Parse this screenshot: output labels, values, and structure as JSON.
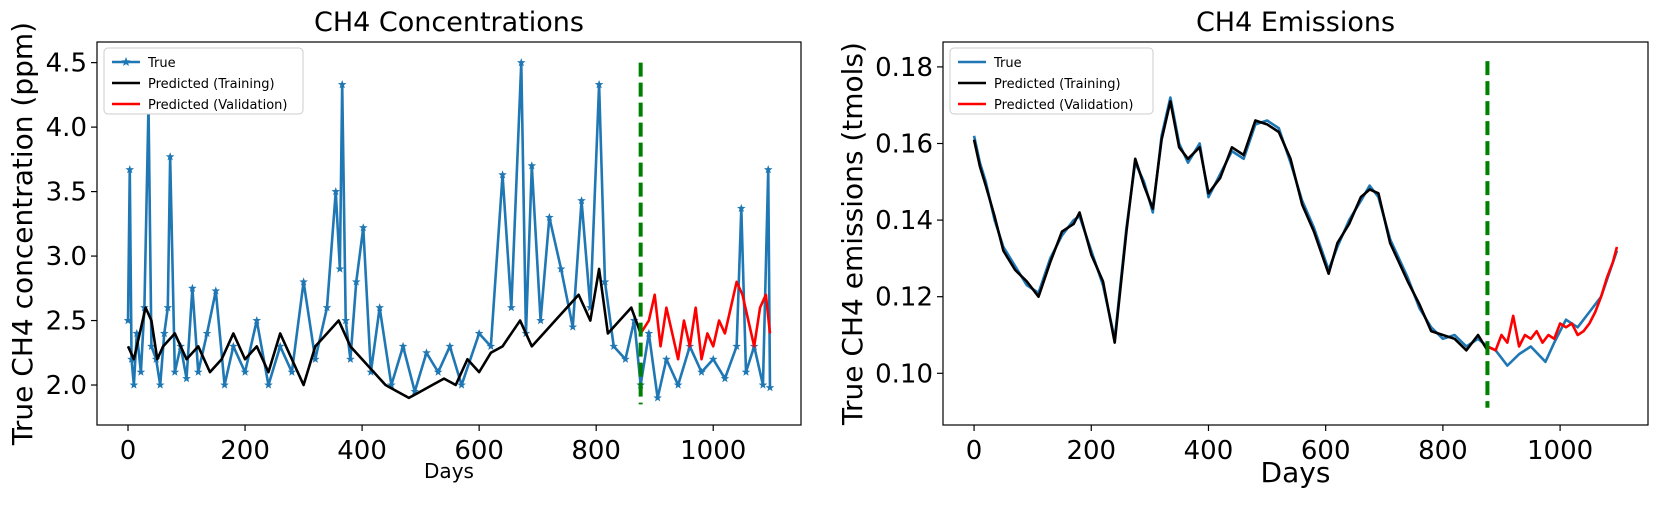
{
  "chart_data": [
    {
      "type": "line",
      "title": "CH4 Concentrations",
      "xlabel": "Days",
      "ylabel": "True CH4 concentration (ppm)",
      "xlim": [
        -53,
        1150
      ],
      "ylim": [
        1.69,
        4.66
      ],
      "xticks": [
        0,
        200,
        400,
        600,
        800,
        1000
      ],
      "yticks": [
        2.0,
        2.5,
        3.0,
        3.5,
        4.0,
        4.5
      ],
      "ytick_labels": [
        "2.0",
        "2.5",
        "3.0",
        "3.5",
        "4.0",
        "4.5"
      ],
      "grid": false,
      "legend_position": "top-left",
      "split_line": {
        "x": 876,
        "y_range": [
          1.85,
          4.5
        ],
        "color": "#008000",
        "style": "dashed"
      },
      "series": [
        {
          "name": "True",
          "color": "#1f77b4",
          "marker": "star",
          "x": [
            0,
            3,
            6,
            10,
            15,
            22,
            28,
            35,
            40,
            48,
            55,
            62,
            68,
            72,
            80,
            90,
            100,
            110,
            120,
            135,
            150,
            165,
            180,
            200,
            220,
            240,
            260,
            280,
            300,
            320,
            340,
            355,
            362,
            366,
            372,
            380,
            390,
            402,
            415,
            430,
            450,
            470,
            490,
            510,
            530,
            550,
            570,
            600,
            620,
            640,
            655,
            672,
            680,
            690,
            705,
            720,
            740,
            760,
            775,
            790,
            805,
            815,
            830,
            850,
            865,
            876,
            890,
            905,
            920,
            940,
            960,
            980,
            1000,
            1020,
            1040,
            1048,
            1056,
            1070,
            1085,
            1094,
            1097
          ],
          "values": [
            2.5,
            3.67,
            2.2,
            2.0,
            2.4,
            2.1,
            2.6,
            4.17,
            2.3,
            2.2,
            2.0,
            2.4,
            2.6,
            3.77,
            2.1,
            2.3,
            2.05,
            2.75,
            2.1,
            2.4,
            2.73,
            2.0,
            2.3,
            2.1,
            2.5,
            2.0,
            2.3,
            2.1,
            2.8,
            2.2,
            2.6,
            3.5,
            2.9,
            4.33,
            2.5,
            2.2,
            2.8,
            3.22,
            2.1,
            2.6,
            2.0,
            2.3,
            1.95,
            2.25,
            2.1,
            2.3,
            2.0,
            2.4,
            2.3,
            3.63,
            2.6,
            4.5,
            2.4,
            3.7,
            2.5,
            3.3,
            2.9,
            2.45,
            3.43,
            2.6,
            4.33,
            2.8,
            2.3,
            2.2,
            2.5,
            2.0,
            2.4,
            1.9,
            2.2,
            2.0,
            2.3,
            2.1,
            2.2,
            2.05,
            2.3,
            3.37,
            2.1,
            2.3,
            2.0,
            3.67,
            1.98
          ]
        },
        {
          "name": "Predicted (Training)",
          "color": "#000000",
          "x": [
            0,
            10,
            20,
            30,
            40,
            50,
            60,
            80,
            100,
            120,
            140,
            160,
            180,
            200,
            220,
            240,
            260,
            280,
            300,
            320,
            340,
            360,
            380,
            400,
            420,
            440,
            460,
            480,
            500,
            520,
            540,
            560,
            580,
            600,
            620,
            640,
            655,
            670,
            690,
            710,
            730,
            750,
            770,
            790,
            805,
            820,
            840,
            860,
            876
          ],
          "values": [
            2.3,
            2.2,
            2.4,
            2.6,
            2.5,
            2.2,
            2.3,
            2.4,
            2.2,
            2.3,
            2.1,
            2.2,
            2.4,
            2.2,
            2.3,
            2.1,
            2.4,
            2.2,
            2.0,
            2.3,
            2.4,
            2.5,
            2.3,
            2.2,
            2.1,
            2.0,
            1.95,
            1.9,
            1.95,
            2.0,
            2.05,
            2.0,
            2.2,
            2.1,
            2.25,
            2.3,
            2.4,
            2.5,
            2.3,
            2.4,
            2.5,
            2.6,
            2.7,
            2.5,
            2.9,
            2.4,
            2.5,
            2.6,
            2.4
          ]
        },
        {
          "name": "Predicted (Validation)",
          "color": "#ff0000",
          "x": [
            876,
            890,
            900,
            910,
            920,
            930,
            940,
            950,
            960,
            970,
            980,
            990,
            1000,
            1010,
            1020,
            1030,
            1040,
            1050,
            1060,
            1070,
            1080,
            1090,
            1097
          ],
          "values": [
            2.4,
            2.5,
            2.7,
            2.3,
            2.6,
            2.4,
            2.2,
            2.5,
            2.3,
            2.6,
            2.2,
            2.4,
            2.3,
            2.5,
            2.4,
            2.6,
            2.8,
            2.7,
            2.5,
            2.3,
            2.6,
            2.7,
            2.4
          ]
        }
      ]
    },
    {
      "type": "line",
      "title": "CH4 Emissions",
      "xlabel": "Days",
      "ylabel": "True CH4 emissions (tmols)",
      "xlim": [
        -53,
        1150
      ],
      "ylim": [
        0.0865,
        0.1865
      ],
      "xticks": [
        0,
        200,
        400,
        600,
        800,
        1000
      ],
      "yticks": [
        0.1,
        0.12,
        0.14,
        0.16,
        0.18
      ],
      "ytick_labels": [
        "0.10",
        "0.12",
        "0.14",
        "0.16",
        "0.18"
      ],
      "grid": false,
      "legend_position": "top-left",
      "split_line": {
        "x": 876,
        "y_range": [
          0.091,
          0.1815
        ],
        "color": "#008000",
        "style": "dashed"
      },
      "series": [
        {
          "name": "True",
          "color": "#1f77b4",
          "x": [
            0,
            10,
            20,
            35,
            50,
            70,
            90,
            110,
            130,
            150,
            170,
            180,
            200,
            220,
            240,
            260,
            275,
            290,
            305,
            320,
            335,
            350,
            365,
            385,
            400,
            420,
            440,
            460,
            480,
            500,
            520,
            540,
            560,
            580,
            605,
            620,
            640,
            660,
            675,
            690,
            710,
            740,
            760,
            780,
            800,
            820,
            840,
            860,
            876,
            890,
            910,
            930,
            950,
            975,
            990,
            1010,
            1030,
            1050,
            1070,
            1097
          ],
          "values": [
            0.162,
            0.155,
            0.15,
            0.14,
            0.133,
            0.128,
            0.123,
            0.121,
            0.13,
            0.136,
            0.14,
            0.141,
            0.132,
            0.123,
            0.109,
            0.138,
            0.155,
            0.15,
            0.142,
            0.162,
            0.172,
            0.16,
            0.155,
            0.16,
            0.146,
            0.152,
            0.158,
            0.156,
            0.165,
            0.166,
            0.164,
            0.155,
            0.145,
            0.138,
            0.127,
            0.133,
            0.14,
            0.145,
            0.149,
            0.146,
            0.135,
            0.125,
            0.117,
            0.112,
            0.109,
            0.11,
            0.107,
            0.109,
            0.107,
            0.106,
            0.102,
            0.105,
            0.107,
            0.103,
            0.108,
            0.114,
            0.112,
            0.116,
            0.12,
            0.132
          ]
        },
        {
          "name": "Predicted (Training)",
          "color": "#000000",
          "x": [
            0,
            10,
            20,
            35,
            50,
            70,
            90,
            110,
            130,
            150,
            170,
            180,
            200,
            220,
            240,
            260,
            275,
            290,
            305,
            320,
            335,
            350,
            365,
            385,
            400,
            420,
            440,
            460,
            480,
            500,
            520,
            540,
            560,
            580,
            605,
            620,
            640,
            660,
            675,
            690,
            710,
            740,
            760,
            780,
            800,
            820,
            840,
            860,
            876
          ],
          "values": [
            0.161,
            0.154,
            0.149,
            0.141,
            0.132,
            0.127,
            0.124,
            0.12,
            0.129,
            0.137,
            0.139,
            0.142,
            0.131,
            0.124,
            0.108,
            0.137,
            0.156,
            0.149,
            0.143,
            0.161,
            0.171,
            0.159,
            0.156,
            0.159,
            0.147,
            0.151,
            0.159,
            0.157,
            0.166,
            0.165,
            0.163,
            0.156,
            0.144,
            0.137,
            0.126,
            0.134,
            0.139,
            0.146,
            0.148,
            0.147,
            0.134,
            0.124,
            0.118,
            0.111,
            0.11,
            0.109,
            0.106,
            0.11,
            0.106
          ]
        },
        {
          "name": "Predicted (Validation)",
          "color": "#ff0000",
          "x": [
            876,
            890,
            900,
            910,
            920,
            930,
            940,
            950,
            960,
            970,
            980,
            990,
            1000,
            1010,
            1020,
            1030,
            1040,
            1050,
            1060,
            1070,
            1080,
            1090,
            1097
          ],
          "values": [
            0.107,
            0.106,
            0.11,
            0.108,
            0.115,
            0.107,
            0.11,
            0.109,
            0.111,
            0.108,
            0.11,
            0.109,
            0.113,
            0.112,
            0.113,
            0.11,
            0.111,
            0.113,
            0.116,
            0.12,
            0.125,
            0.129,
            0.133
          ]
        }
      ]
    }
  ]
}
